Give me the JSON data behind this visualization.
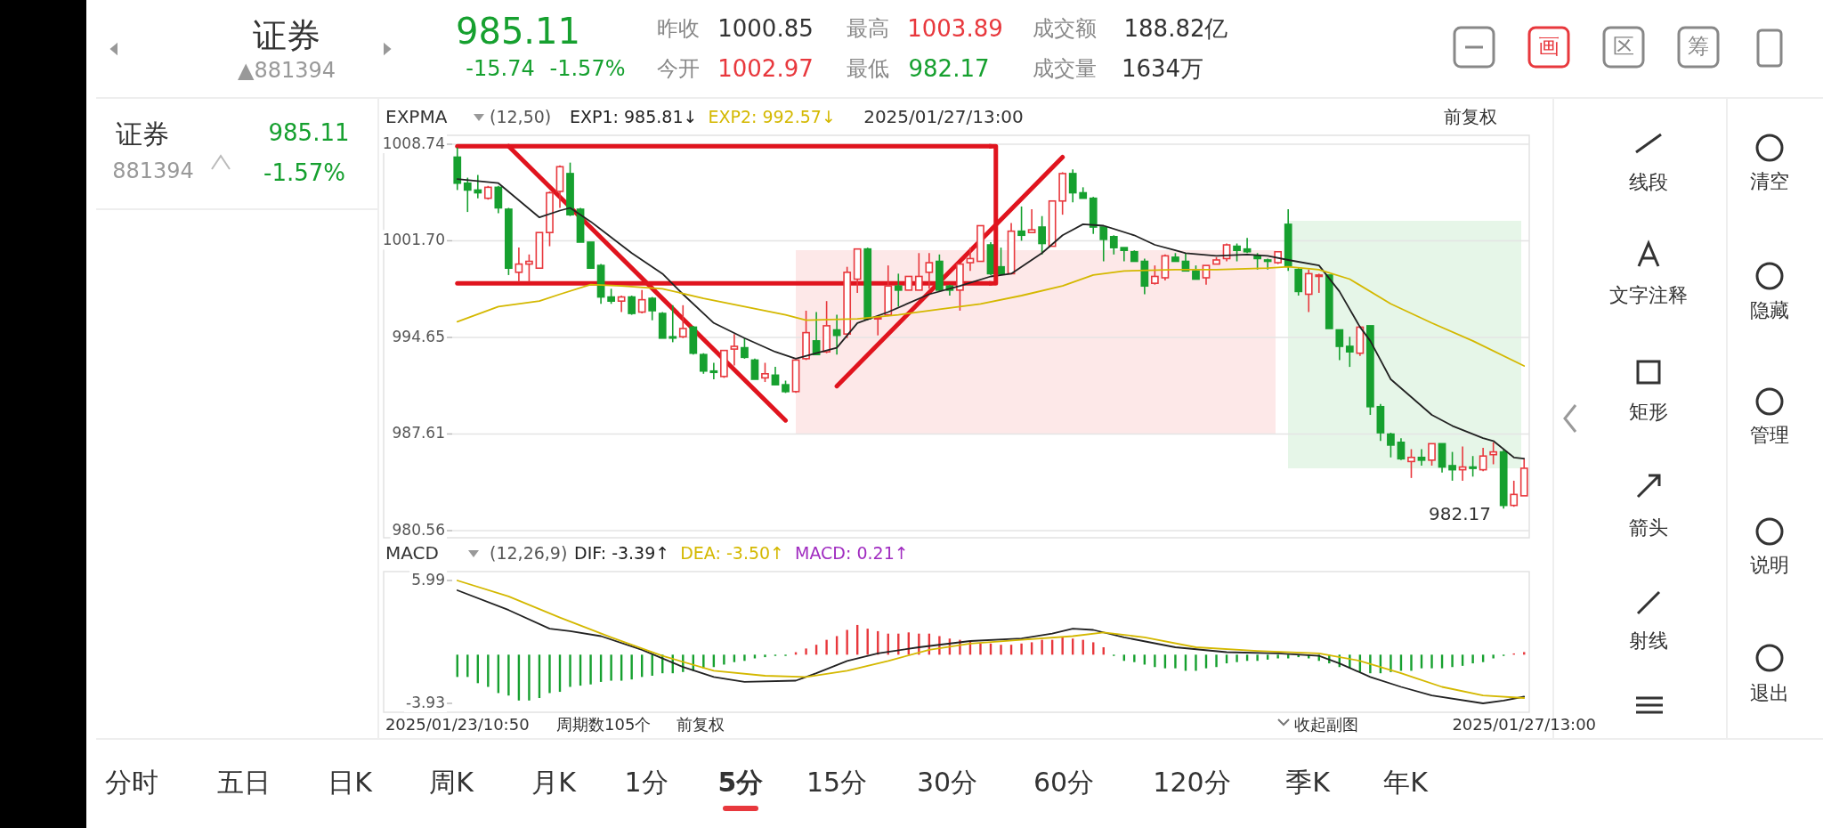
{
  "chart_data": [
    {
      "type": "candlestick",
      "tick_labels": "y",
      "grid": "y",
      "legend": "top left",
      "categories": [
        null,
        null,
        null,
        null,
        null,
        null,
        null,
        null,
        null,
        null,
        null,
        null,
        null,
        null,
        null,
        null,
        null,
        null,
        null,
        null,
        null,
        null,
        null,
        null,
        null,
        null,
        null,
        null,
        null,
        null,
        null,
        null,
        null,
        null,
        null,
        null,
        null,
        null,
        null,
        null,
        null,
        null,
        null,
        null,
        null,
        null,
        null,
        null,
        null,
        null,
        null,
        null,
        null,
        null,
        null,
        null,
        null,
        null,
        null,
        null,
        null,
        null,
        null,
        null,
        null,
        null,
        null,
        null,
        null,
        null,
        null,
        null,
        null,
        null,
        null,
        null,
        null,
        null,
        null,
        null,
        null,
        null,
        null,
        null,
        null,
        null,
        null,
        null,
        null,
        null,
        null,
        null,
        null,
        null,
        null,
        null,
        null,
        null,
        null,
        null,
        null,
        null,
        null,
        null,
        null
      ],
      "ylim": [
        980.56,
        1008.74
      ],
      "yticks": [
        1008.74,
        {
          "value": 1001.7,
          "label": "1001.70"
        },
        994.65,
        987.61,
        980.56
      ],
      "ohlc": [
        [
          1007.8,
          1008.5,
          1005.4,
          1005.9
        ],
        [
          1005.9,
          1006.3,
          1003.8,
          1005.4
        ],
        [
          1005.4,
          1006.5,
          1004.8,
          1005.2
        ],
        [
          1004.8,
          1005.7,
          1004.7,
          1005.6
        ],
        [
          1005.6,
          1005.7,
          1003.7,
          1004.1
        ],
        [
          1004.0,
          1004.1,
          999.2,
          999.7
        ],
        [
          999.4,
          1001.2,
          998.7,
          1000.0
        ],
        [
          1000.0,
          1000.7,
          998.7,
          1000.2
        ],
        [
          999.7,
          1002.3,
          999.7,
          1002.3
        ],
        [
          1002.3,
          1005.3,
          1001.3,
          1005.2
        ],
        [
          1005.3,
          1007.2,
          1004.1,
          1007.1
        ],
        [
          1006.6,
          1007.4,
          1003.5,
          1003.6
        ],
        [
          1004.0,
          1004.1,
          1001.6,
          1001.6
        ],
        [
          1001.6,
          1001.6,
          999.7,
          999.7
        ],
        [
          999.9,
          1000.0,
          997.1,
          997.6
        ],
        [
          997.6,
          998.2,
          997.1,
          997.3
        ],
        [
          997.3,
          997.7,
          996.5,
          997.6
        ],
        [
          997.6,
          997.7,
          996.3,
          996.4
        ],
        [
          996.5,
          998.1,
          996.4,
          997.4
        ],
        [
          997.5,
          997.6,
          995.9,
          996.6
        ],
        [
          996.4,
          996.5,
          994.6,
          994.6
        ],
        [
          994.7,
          997.0,
          994.3,
          994.7
        ],
        [
          994.7,
          997.0,
          994.6,
          995.3
        ],
        [
          995.4,
          995.5,
          993.4,
          993.5
        ],
        [
          993.4,
          993.5,
          992.0,
          992.2
        ],
        [
          992.2,
          992.8,
          991.6,
          992.1
        ],
        [
          991.8,
          993.7,
          991.7,
          993.7
        ],
        [
          993.8,
          994.9,
          992.6,
          994.0
        ],
        [
          993.9,
          994.6,
          993.1,
          993.2
        ],
        [
          993.0,
          993.1,
          991.6,
          991.6
        ],
        [
          991.7,
          992.8,
          991.4,
          992.0
        ],
        [
          991.9,
          992.5,
          991.2,
          991.2
        ],
        [
          991.2,
          991.5,
          990.6,
          990.7
        ],
        [
          990.7,
          993.0,
          990.6,
          993.0
        ],
        [
          993.1,
          996.6,
          993.0,
          995.0
        ],
        [
          994.4,
          996.5,
          993.4,
          993.4
        ],
        [
          993.6,
          997.3,
          993.5,
          995.5
        ],
        [
          995.2,
          996.3,
          993.4,
          994.8
        ],
        [
          994.9,
          999.8,
          994.6,
          999.4
        ],
        [
          998.9,
          1001.1,
          997.9,
          1001.1
        ],
        [
          1001.1,
          1001.2,
          995.9,
          996.0
        ],
        [
          996.0,
          996.1,
          994.8,
          996.1
        ],
        [
          996.3,
          999.9,
          996.2,
          998.4
        ],
        [
          998.4,
          999.3,
          996.9,
          998.1
        ],
        [
          998.1,
          999.1,
          998.1,
          999.1
        ],
        [
          998.1,
          1000.8,
          998.1,
          999.1
        ],
        [
          999.4,
          1000.8,
          998.2,
          1000.1
        ],
        [
          1000.2,
          1000.7,
          998.0,
          998.1
        ],
        [
          998.4,
          998.5,
          997.7,
          998.1
        ],
        [
          998.1,
          1000.0,
          996.6,
          1000.0
        ],
        [
          1000.1,
          1001.2,
          999.5,
          1000.4
        ],
        [
          1000.2,
          1002.8,
          1000.2,
          1002.8
        ],
        [
          1001.4,
          1001.6,
          999.2,
          999.3
        ],
        [
          999.8,
          1001.2,
          999.3,
          999.3
        ],
        [
          999.3,
          1003.0,
          999.3,
          1002.4
        ],
        [
          1002.4,
          1004.2,
          1001.7,
          1002.1
        ],
        [
          1002.3,
          1004.0,
          1002.3,
          1002.5
        ],
        [
          1002.7,
          1003.5,
          1000.7,
          1001.5
        ],
        [
          1001.3,
          1004.6,
          1001.3,
          1004.6
        ],
        [
          1004.6,
          1006.7,
          1003.6,
          1006.6
        ],
        [
          1006.6,
          1006.9,
          1004.5,
          1005.2
        ],
        [
          1005.2,
          1005.6,
          1004.8,
          1004.8
        ],
        [
          1004.8,
          1004.9,
          1002.2,
          1002.7
        ],
        [
          1002.7,
          1002.7,
          1000.2,
          1001.8
        ],
        [
          1002.0,
          1002.1,
          1000.7,
          1001.2
        ],
        [
          1001.2,
          1001.2,
          1000.2,
          1001.0
        ],
        [
          1000.9,
          1001.0,
          1000.2,
          1000.2
        ],
        [
          1000.2,
          1000.4,
          997.8,
          998.4
        ],
        [
          998.6,
          999.9,
          998.5,
          999.1
        ],
        [
          999.0,
          1000.7,
          998.8,
          1000.6
        ],
        [
          1000.5,
          1000.8,
          1000.2,
          1000.2
        ],
        [
          1000.2,
          1000.8,
          999.5,
          999.5
        ],
        [
          999.5,
          999.9,
          998.9,
          998.9
        ],
        [
          999.0,
          999.9,
          998.5,
          999.9
        ],
        [
          1000.0,
          1000.5,
          1000.0,
          1000.3
        ],
        [
          1000.4,
          1001.5,
          1000.2,
          1001.4
        ],
        [
          1001.3,
          1001.5,
          1000.2,
          1001.0
        ],
        [
          1001.1,
          1001.9,
          1000.8,
          1000.9
        ],
        [
          1000.6,
          1000.8,
          999.6,
          1000.4
        ],
        [
          1000.3,
          1000.4,
          999.6,
          1000.2
        ],
        [
          1000.1,
          1000.9,
          1000.0,
          1000.9
        ],
        [
          1002.9,
          1004.0,
          999.5,
          999.9
        ],
        [
          999.6,
          999.7,
          997.7,
          998.0
        ],
        [
          997.8,
          999.6,
          996.5,
          999.3
        ],
        [
          999.1,
          999.3,
          997.9,
          999.2
        ],
        [
          999.2,
          999.2,
          995.3,
          995.3
        ],
        [
          995.2,
          995.2,
          993.0,
          994.0
        ],
        [
          994.0,
          994.7,
          992.5,
          993.6
        ],
        [
          993.5,
          995.5,
          993.3,
          995.4
        ],
        [
          995.5,
          995.5,
          989.0,
          989.6
        ],
        [
          989.6,
          989.8,
          987.1,
          987.7
        ],
        [
          987.6,
          987.7,
          985.9,
          986.8
        ],
        [
          987.0,
          987.3,
          985.7,
          985.8
        ],
        [
          985.6,
          986.5,
          984.4,
          985.9
        ],
        [
          985.9,
          986.5,
          985.3,
          985.7
        ],
        [
          985.7,
          986.9,
          985.3,
          986.9
        ],
        [
          986.9,
          986.9,
          984.8,
          985.2
        ],
        [
          985.3,
          986.3,
          984.2,
          985.0
        ],
        [
          985.0,
          986.7,
          984.2,
          985.2
        ],
        [
          985.2,
          986.0,
          984.5,
          985.1
        ],
        [
          985.0,
          986.6,
          984.9,
          986.0
        ],
        [
          986.1,
          987.0,
          985.4,
          986.3
        ],
        [
          986.3,
          986.5,
          982.17,
          982.4
        ],
        [
          982.4,
          984.2,
          982.3,
          983.2
        ],
        [
          983.1,
          985.8,
          983.1,
          985.11
        ]
      ],
      "colors": [
        "#16a02f",
        "#16a02f",
        "#16a02f",
        "#e8383d",
        "#16a02f",
        "#16a02f",
        "#e8383d",
        "#e8383d",
        "#e8383d",
        "#e8383d",
        "#e8383d",
        "#16a02f",
        "#16a02f",
        "#16a02f",
        "#16a02f",
        "#16a02f",
        "#e8383d",
        "#16a02f",
        "#e8383d",
        "#16a02f",
        "#16a02f",
        "#16a02f",
        "#e8383d",
        "#16a02f",
        "#16a02f",
        "#16a02f",
        "#e8383d",
        "#e8383d",
        "#16a02f",
        "#16a02f",
        "#e8383d",
        "#16a02f",
        "#16a02f",
        "#e8383d",
        "#e8383d",
        "#16a02f",
        "#e8383d",
        "#16a02f",
        "#e8383d",
        "#e8383d",
        "#16a02f",
        "#e8383d",
        "#e8383d",
        "#16a02f",
        "#e8383d",
        "#e8383d",
        "#e8383d",
        "#16a02f",
        "#16a02f",
        "#e8383d",
        "#e8383d",
        "#e8383d",
        "#16a02f",
        "#16a02f",
        "#e8383d",
        "#16a02f",
        "#e8383d",
        "#16a02f",
        "#e8383d",
        "#e8383d",
        "#16a02f",
        "#16a02f",
        "#16a02f",
        "#16a02f",
        "#16a02f",
        "#16a02f",
        "#16a02f",
        "#16a02f",
        "#e8383d",
        "#e8383d",
        "#16a02f",
        "#16a02f",
        "#16a02f",
        "#e8383d",
        "#e8383d",
        "#e8383d",
        "#16a02f",
        "#16a02f",
        "#16a02f",
        "#16a02f",
        "#e8383d",
        "#16a02f",
        "#16a02f",
        "#e8383d",
        "#e8383d",
        "#16a02f",
        "#16a02f",
        "#16a02f",
        "#e8383d",
        "#16a02f",
        "#16a02f",
        "#16a02f",
        "#16a02f",
        "#e8383d",
        "#16a02f",
        "#e8383d",
        "#16a02f",
        "#16a02f",
        "#e8383d",
        "#16a02f",
        "#e8383d",
        "#e8383d",
        "#16a02f",
        "#e8383d",
        "#e8383d"
      ],
      "series": [
        {
          "type": "line",
          "name": "EXP1: 985.81↓",
          "color": "#222222",
          "values": [
            1006.2,
            null,
            null,
            null,
            1005.9,
            null,
            null,
            null,
            1003.4,
            null,
            1003.9,
            1004.1,
            null,
            1003.1,
            null,
            null,
            null,
            1000.8,
            null,
            null,
            999.3,
            null,
            997.8,
            null,
            null,
            995.7,
            null,
            null,
            994.6,
            null,
            null,
            993.6,
            null,
            993.1,
            null,
            993.5,
            null,
            993.9,
            null,
            995.7,
            null,
            null,
            996.5,
            null,
            null,
            null,
            997.8,
            null,
            null,
            998.4,
            null,
            null,
            999.1,
            null,
            999.3,
            null,
            null,
            1000.8,
            null,
            1002.1,
            null,
            1002.9,
            null,
            1002.8,
            null,
            null,
            1002.1,
            null,
            1001.4,
            null,
            1001.0,
            1000.8,
            null,
            null,
            1000.6,
            null,
            null,
            1000.7,
            null,
            1000.6,
            null,
            1000.3,
            null,
            null,
            999.9,
            null,
            998.0,
            null,
            995.4,
            994.4,
            null,
            991.6,
            null,
            990.3,
            null,
            989.0,
            null,
            988.2,
            null,
            null,
            987.3,
            987.1,
            986.5,
            985.9,
            985.81
          ]
        },
        {
          "type": "line",
          "name": "EXP2: 992.57↓",
          "color": "#d4b800",
          "values": [
            995.8,
            null,
            null,
            null,
            996.9,
            null,
            null,
            null,
            997.3,
            null,
            997.8,
            null,
            null,
            998.5,
            null,
            null,
            998.4,
            null,
            null,
            null,
            998.2,
            null,
            null,
            null,
            997.5,
            null,
            null,
            null,
            996.9,
            null,
            null,
            null,
            996.3,
            null,
            995.9,
            null,
            null,
            null,
            null,
            996.0,
            null,
            null,
            null,
            996.3,
            null,
            null,
            null,
            996.7,
            null,
            null,
            null,
            997.1,
            null,
            null,
            null,
            997.7,
            null,
            null,
            null,
            998.4,
            null,
            null,
            999.2,
            null,
            null,
            999.5,
            null,
            null,
            null,
            null,
            999.6,
            null,
            null,
            null,
            999.6,
            null,
            null,
            null,
            null,
            999.7,
            null,
            999.8,
            null,
            null,
            999.6,
            null,
            null,
            998.9,
            null,
            null,
            null,
            997.1,
            null,
            null,
            null,
            995.7,
            null,
            null,
            null,
            994.4,
            null,
            null,
            null,
            null,
            992.57
          ]
        },
        {
          "type": "line",
          "color": "#e0141e",
          "values": [
            1008.6,
            null,
            null,
            null,
            null,
            null,
            null,
            null,
            null,
            null,
            null,
            null,
            null,
            null,
            null,
            null,
            null,
            null,
            null,
            null,
            null,
            null,
            null,
            null,
            null,
            null,
            null,
            null,
            null,
            null,
            null,
            null,
            null,
            null,
            null,
            null,
            null,
            null,
            null,
            null,
            null,
            null,
            null,
            null,
            null,
            null,
            null,
            null,
            null,
            null,
            null,
            null,
            1008.6,
            null,
            null,
            null,
            null,
            null,
            null,
            null,
            null,
            null,
            null,
            null,
            null,
            null,
            null,
            null,
            null,
            null,
            null,
            null,
            null,
            null,
            null,
            null,
            null,
            null,
            null,
            null,
            null,
            null,
            null,
            null,
            null,
            null,
            null,
            null,
            null,
            null,
            null,
            null,
            null,
            null,
            null,
            null,
            null,
            null,
            null,
            null,
            null,
            null,
            null,
            null,
            null
          ]
        },
        {
          "type": "line",
          "color": "#e0141e",
          "values": [
            998.6,
            null,
            null,
            null,
            null,
            null,
            null,
            null,
            null,
            null,
            null,
            null,
            null,
            null,
            null,
            null,
            null,
            null,
            null,
            null,
            null,
            null,
            null,
            null,
            null,
            null,
            null,
            null,
            null,
            null,
            null,
            null,
            null,
            null,
            null,
            null,
            null,
            null,
            null,
            null,
            null,
            null,
            null,
            null,
            null,
            null,
            null,
            null,
            null,
            null,
            null,
            null,
            998.6,
            null,
            null,
            null,
            null,
            null,
            null,
            null,
            null,
            null,
            null,
            null,
            null,
            null,
            null,
            null,
            null,
            null,
            null,
            null,
            null,
            null,
            null,
            null,
            null,
            null,
            null,
            null,
            null,
            null,
            null,
            null,
            null,
            null,
            null,
            null,
            null,
            null,
            null,
            null,
            null,
            null,
            null,
            null,
            null,
            null,
            null,
            null,
            null,
            null,
            null,
            null,
            null
          ]
        },
        {
          "type": "line",
          "color": "#e0141e",
          "values": [
            null,
            null,
            null,
            null,
            null,
            1008.6,
            null,
            null,
            null,
            null,
            null,
            null,
            null,
            null,
            null,
            null,
            null,
            null,
            null,
            null,
            null,
            null,
            null,
            null,
            null,
            null,
            null,
            null,
            null,
            null,
            null,
            null,
            988.6,
            null,
            null,
            null,
            null,
            null,
            null,
            null,
            null,
            null,
            null,
            null,
            null,
            null,
            null,
            null,
            null,
            null,
            null,
            null,
            null,
            null,
            null,
            null,
            null,
            null,
            null,
            null,
            null,
            null,
            null,
            null,
            null,
            null,
            null,
            null,
            null,
            null,
            null,
            null,
            null,
            null,
            null,
            null,
            null,
            null,
            null,
            null,
            null,
            null,
            null,
            null,
            null,
            null,
            null,
            null,
            null,
            null,
            null,
            null,
            null,
            null,
            null,
            null,
            null,
            null,
            null,
            null,
            null,
            null,
            null,
            null,
            null
          ]
        },
        {
          "type": "line",
          "color": "#e0141e",
          "values": [
            null,
            null,
            null,
            null,
            null,
            null,
            null,
            null,
            null,
            null,
            null,
            null,
            null,
            null,
            null,
            null,
            null,
            null,
            null,
            null,
            null,
            null,
            null,
            null,
            null,
            null,
            null,
            null,
            null,
            null,
            null,
            null,
            null,
            null,
            null,
            null,
            null,
            991.1,
            null,
            null,
            null,
            null,
            null,
            null,
            null,
            null,
            null,
            null,
            null,
            null,
            null,
            null,
            null,
            null,
            null,
            null,
            null,
            null,
            null,
            1007.8,
            null,
            null,
            null,
            null,
            null,
            null,
            null,
            null,
            null,
            null,
            null,
            null,
            null,
            null,
            null,
            null,
            null,
            null,
            null,
            null,
            null,
            null,
            null,
            null,
            null,
            null,
            null,
            null,
            null,
            null,
            null,
            null,
            null,
            null,
            null,
            null,
            null,
            null,
            null,
            null,
            null,
            null,
            null,
            null,
            null
          ]
        }
      ],
      "annotations": [
        "证券",
        "▲881394",
        "985.11",
        "-15.74",
        "-1.57%",
        "昨收",
        "1000.85",
        "今开",
        "1002.97",
        "最高",
        "1003.89",
        "最低",
        "982.17",
        "成交额",
        "188.82亿",
        "成交量",
        "1634万",
        "画",
        "区",
        "筹",
        "证券",
        "985.11",
        "881394",
        "-1.57%",
        "EXPMA",
        "(12,50)",
        "2025/01/27/13:00",
        "前复权",
        "982.17",
        "线段",
        "文字注释",
        "矩形",
        "箭头",
        "射线",
        "清空",
        "隐藏",
        "管理",
        "说明",
        "退出",
        "分时",
        "五日",
        "日K",
        "周K",
        "月K",
        "1分",
        "5分",
        "15分",
        "30分",
        "60分",
        "120分",
        "季K",
        "年K"
      ]
    },
    {
      "type": "bar",
      "legend": "top left",
      "categories": [
        "2025/01/23/10:50",
        null,
        null,
        null,
        null,
        null,
        null,
        null,
        null,
        null,
        null,
        null,
        null,
        null,
        null,
        null,
        null,
        null,
        null,
        null,
        null,
        null,
        null,
        null,
        null,
        null,
        null,
        null,
        null,
        null,
        null,
        null,
        null,
        null,
        null,
        null,
        null,
        null,
        null,
        null,
        null,
        null,
        null,
        null,
        null,
        null,
        null,
        null,
        null,
        null,
        null,
        null,
        null,
        null,
        null,
        null,
        null,
        null,
        null,
        null,
        null,
        null,
        null,
        null,
        null,
        null,
        null,
        null,
        null,
        null,
        null,
        null,
        null,
        null,
        null,
        null,
        null,
        null,
        null,
        null,
        null,
        null,
        null,
        null,
        null,
        null,
        null,
        null,
        null,
        null,
        null,
        null,
        null,
        null,
        null,
        null,
        null,
        null,
        null,
        null,
        null,
        null,
        null,
        null,
        "2025/01/27/13:00"
      ],
      "ylim": [
        -3.93,
        5.99
      ],
      "yticks": [
        5.99,
        -3.93
      ],
      "series": [
        {
          "type": "bar",
          "color": "#16a02f",
          "values": [
            -1.8,
            -1.8,
            -2.3,
            -2.6,
            -3.1,
            -3.3,
            -3.7,
            -3.7,
            -3.5,
            -3.1,
            -3.0,
            -2.6,
            -2.5,
            -2.4,
            -2.2,
            -2.1,
            -2.1,
            -2.0,
            -1.8,
            -1.7,
            -1.5,
            -1.5,
            -1.4,
            -1.3,
            -1.1,
            -1.0,
            -0.8,
            -0.6,
            -0.5,
            -0.3,
            -0.2,
            -0.1,
            -0.1,
            null,
            null,
            null,
            null,
            null,
            null,
            null,
            null,
            null,
            null,
            null,
            null,
            null,
            null,
            null,
            null,
            null,
            null,
            null,
            null,
            null,
            null,
            null,
            null,
            null,
            null,
            null,
            null,
            null,
            null,
            null,
            -0.1,
            -0.5,
            -0.6,
            -0.8,
            -1.0,
            -1.1,
            -1.1,
            -1.3,
            -1.3,
            -1.1,
            -1.0,
            -0.7,
            -0.6,
            -0.5,
            -0.5,
            -0.4,
            -0.3,
            -0.3,
            -0.2,
            -0.3,
            -0.5,
            -0.7,
            -1.0,
            -1.1,
            -1.4,
            -1.5,
            -1.5,
            -1.4,
            -1.3,
            -1.3,
            -1.1,
            -1.1,
            -1.1,
            -1.0,
            -0.9,
            -0.7,
            -0.6,
            -0.3,
            -0.1,
            null,
            null
          ]
        },
        {
          "type": "bar",
          "color": "#e8383d",
          "values": [
            null,
            null,
            null,
            null,
            null,
            null,
            null,
            null,
            null,
            null,
            null,
            null,
            null,
            null,
            null,
            null,
            null,
            null,
            null,
            null,
            null,
            null,
            null,
            null,
            null,
            null,
            null,
            null,
            null,
            null,
            null,
            null,
            null,
            0.2,
            0.5,
            0.8,
            1.2,
            1.5,
            2.0,
            2.4,
            2.1,
            1.9,
            1.7,
            1.7,
            1.8,
            1.7,
            1.7,
            1.5,
            1.3,
            1.2,
            1.1,
            0.9,
            0.9,
            0.8,
            0.8,
            0.9,
            1.0,
            1.2,
            1.2,
            1.4,
            1.3,
            1.2,
            1.0,
            0.6,
            null,
            null,
            null,
            null,
            null,
            null,
            null,
            null,
            null,
            null,
            null,
            null,
            null,
            null,
            null,
            null,
            null,
            null,
            null,
            null,
            null,
            null,
            null,
            null,
            null,
            null,
            null,
            null,
            null,
            null,
            null,
            null,
            null,
            null,
            null,
            null,
            null,
            null,
            null,
            0.1,
            0.21
          ]
        },
        {
          "type": "line",
          "name": "DIF: -3.39↑",
          "color": "#222222",
          "values": [
            5.2,
            null,
            null,
            null,
            null,
            3.6,
            null,
            null,
            null,
            2.1,
            null,
            1.9,
            null,
            null,
            1.5,
            null,
            null,
            null,
            0.4,
            null,
            null,
            null,
            -1.0,
            null,
            null,
            -1.8,
            null,
            null,
            -2.2,
            null,
            null,
            null,
            null,
            -2.1,
            null,
            -1.5,
            null,
            null,
            -0.5,
            null,
            null,
            0.1,
            null,
            null,
            null,
            0.6,
            null,
            null,
            null,
            null,
            1.1,
            null,
            null,
            null,
            null,
            1.3,
            null,
            null,
            1.7,
            null,
            2.1,
            null,
            2.0,
            null,
            null,
            1.4,
            null,
            null,
            null,
            null,
            0.6,
            null,
            null,
            null,
            null,
            0.2,
            null,
            null,
            null,
            null,
            0.1,
            null,
            null,
            null,
            -0.1,
            null,
            -0.7,
            null,
            null,
            -1.8,
            null,
            null,
            -2.6,
            null,
            null,
            -3.3,
            null,
            null,
            null,
            null,
            -3.93,
            null,
            -3.7,
            null,
            -3.39
          ]
        },
        {
          "type": "line",
          "name": "DEA: -3.50↑",
          "color": "#d4b800",
          "values": [
            5.99,
            null,
            null,
            null,
            null,
            4.7,
            null,
            null,
            null,
            null,
            3.0,
            null,
            null,
            null,
            null,
            1.4,
            null,
            null,
            null,
            null,
            -0.1,
            null,
            null,
            null,
            null,
            -1.3,
            null,
            null,
            null,
            null,
            -1.7,
            null,
            null,
            null,
            -1.8,
            null,
            null,
            null,
            -1.3,
            null,
            null,
            null,
            -0.5,
            null,
            null,
            null,
            0.4,
            null,
            null,
            null,
            0.9,
            null,
            null,
            null,
            null,
            1.2,
            null,
            null,
            null,
            null,
            1.5,
            null,
            null,
            1.8,
            null,
            null,
            null,
            1.4,
            null,
            null,
            null,
            null,
            0.6,
            null,
            null,
            null,
            null,
            null,
            0.3,
            null,
            null,
            null,
            null,
            null,
            0.1,
            null,
            null,
            null,
            -0.5,
            null,
            null,
            null,
            -1.5,
            null,
            null,
            null,
            -2.6,
            null,
            null,
            null,
            -3.3,
            null,
            null,
            null,
            -3.5
          ]
        }
      ],
      "annotations": [
        "MACD",
        "(12,26,9)",
        "MACD: 0.21↑",
        "周期数105个",
        "前复权",
        "收起副图"
      ]
    }
  ]
}
